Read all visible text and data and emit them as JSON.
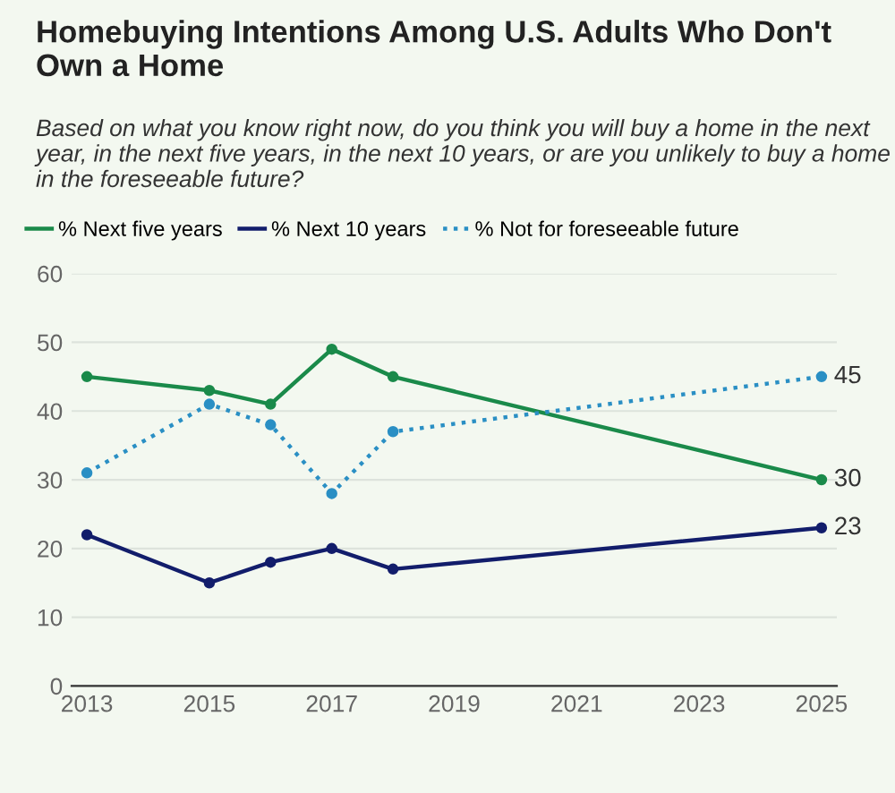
{
  "chart_data": {
    "type": "line",
    "title": "Homebuying Intentions Among U.S. Adults Who Don't Own a Home",
    "subtitle": "Based on what you know right now, do you think you will buy a home in the next year, in the next five years, in the next 10 years, or are you unlikely to buy a home in the foreseeable future?",
    "x": [
      2013,
      2015,
      2016,
      2017,
      2018,
      2025
    ],
    "series": [
      {
        "name": "% Next five years",
        "color": "#1a8a4a",
        "line_style": "solid",
        "values": [
          45,
          43,
          41,
          49,
          45,
          30
        ],
        "value_labels": [
          null,
          null,
          null,
          null,
          null,
          "30"
        ]
      },
      {
        "name": "% Next 10 years",
        "color": "#121d6b",
        "line_style": "solid",
        "values": [
          22,
          15,
          18,
          20,
          17,
          23
        ],
        "value_labels": [
          null,
          null,
          null,
          null,
          null,
          "23"
        ]
      },
      {
        "name": "% Not for foreseeable future",
        "color": "#2a8fc4",
        "line_style": "dotted",
        "values": [
          31,
          41,
          38,
          28,
          37,
          45
        ],
        "value_labels": [
          null,
          null,
          null,
          null,
          null,
          "45"
        ]
      }
    ],
    "xlim": [
      2012.75,
      2025.25
    ],
    "xticks": [
      2013,
      2015,
      2017,
      2019,
      2021,
      2023,
      2025
    ],
    "ylim": [
      0,
      60
    ],
    "yticks": [
      0,
      10,
      20,
      30,
      40,
      50,
      60
    ],
    "grid": "y",
    "legend": "top left",
    "marker": "circle"
  }
}
